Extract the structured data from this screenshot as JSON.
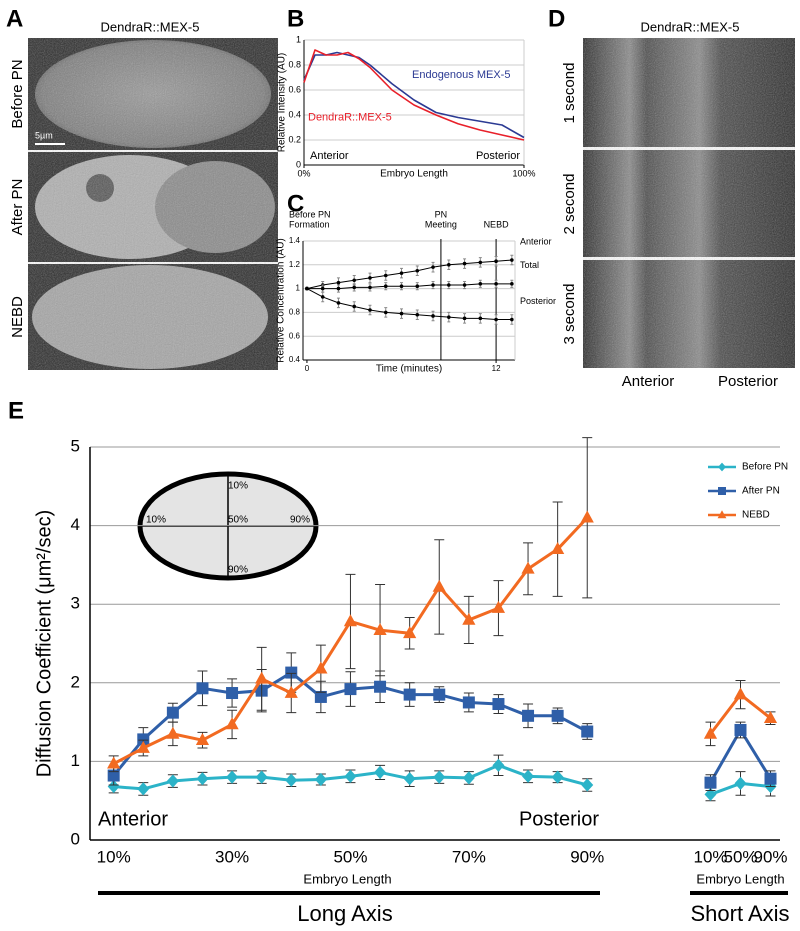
{
  "panel_labels": [
    "A",
    "B",
    "C",
    "D",
    "E"
  ],
  "panel_a": {
    "title": "DendraR::MEX-5",
    "rows": [
      "Before PN",
      "After PN",
      "NEBD"
    ],
    "scale_bar": "5µm"
  },
  "panel_d": {
    "title": "DendraR::MEX-5",
    "rows": [
      "1 second",
      "2 second",
      "3 second"
    ],
    "axis_labels": [
      "Anterior",
      "Posterior"
    ]
  },
  "panel_e": {
    "inset_labels": [
      "10%",
      "10%",
      "50%",
      "90%",
      "90%"
    ],
    "axis_groups": [
      "Long Axis",
      "Short Axis"
    ]
  },
  "chart_data": [
    {
      "type": "line",
      "ylabel": "Relative Intensity (AU)",
      "xlabel": "Embryo Length",
      "annotations": [
        "Anterior",
        "Posterior"
      ],
      "x": [
        0,
        5,
        10,
        15,
        20,
        25,
        30,
        40,
        50,
        60,
        70,
        80,
        90,
        100
      ],
      "series": [
        {
          "name": "Endogenous MEX-5",
          "color": "#2b3a93",
          "values": [
            0.68,
            0.88,
            0.88,
            0.9,
            0.88,
            0.86,
            0.8,
            0.65,
            0.52,
            0.42,
            0.38,
            0.35,
            0.32,
            0.22
          ]
        },
        {
          "name": "DendraR::MEX-5",
          "color": "#e8202a",
          "values": [
            0.66,
            0.92,
            0.88,
            0.88,
            0.9,
            0.85,
            0.78,
            0.6,
            0.48,
            0.4,
            0.33,
            0.28,
            0.24,
            0.2
          ]
        }
      ],
      "xlim": [
        0,
        100
      ],
      "xticks": [
        {
          "value": 0,
          "label": "0%"
        },
        {
          "value": 100,
          "label": "100%"
        }
      ],
      "ylim": [
        0,
        1
      ],
      "yticks": [
        0,
        0.2,
        0.4,
        0.6,
        0.8,
        1
      ],
      "grid": true
    },
    {
      "type": "line",
      "ylabel": "Relative Concentration (AU)",
      "xlabel": "Time (minutes)",
      "annotation": [
        "Before PN",
        "Formation"
      ],
      "vlines": [
        {
          "x": 8.5,
          "label": [
            "PN",
            "Meeting"
          ]
        },
        {
          "x": 12,
          "label": [
            "NEBD"
          ]
        }
      ],
      "x": [
        0,
        1,
        2,
        3,
        4,
        5,
        6,
        7,
        8,
        9,
        10,
        11,
        12,
        13
      ],
      "series": [
        {
          "name": "Anterior",
          "color": "#000000",
          "values": [
            1,
            1.03,
            1.05,
            1.07,
            1.09,
            1.11,
            1.13,
            1.15,
            1.18,
            1.2,
            1.21,
            1.22,
            1.23,
            1.24
          ],
          "errors": [
            0.01,
            0.03,
            0.04,
            0.04,
            0.04,
            0.04,
            0.04,
            0.04,
            0.04,
            0.04,
            0.04,
            0.04,
            0.04,
            0.04
          ]
        },
        {
          "name": "Total",
          "color": "#000000",
          "values": [
            1,
            1,
            1,
            1.01,
            1.01,
            1.02,
            1.02,
            1.02,
            1.03,
            1.03,
            1.03,
            1.04,
            1.04,
            1.04
          ],
          "errors": [
            0.01,
            0.03,
            0.03,
            0.03,
            0.03,
            0.03,
            0.03,
            0.03,
            0.03,
            0.03,
            0.03,
            0.03,
            0.03,
            0.03
          ]
        },
        {
          "name": "Posterior",
          "color": "#000000",
          "values": [
            1,
            0.93,
            0.88,
            0.85,
            0.82,
            0.8,
            0.79,
            0.78,
            0.77,
            0.76,
            0.75,
            0.75,
            0.74,
            0.74
          ],
          "errors": [
            0.01,
            0.04,
            0.04,
            0.04,
            0.04,
            0.04,
            0.04,
            0.04,
            0.04,
            0.04,
            0.04,
            0.04,
            0.04,
            0.04
          ]
        }
      ],
      "xlim": [
        -0.25,
        13.2
      ],
      "xticks": [
        0,
        12
      ],
      "ylim": [
        0.4,
        1.4
      ],
      "yticks": [
        0.4,
        0.6,
        0.8,
        1,
        1.2,
        1.4
      ],
      "grid": true
    },
    {
      "type": "line",
      "ylabel": "Diffusion Coefficient (μm²/sec)",
      "xlabel": "Embryo Length",
      "annotations": [
        "Anterior",
        "Posterior"
      ],
      "legend": "upper right",
      "x": [
        10,
        15,
        20,
        25,
        30,
        35,
        40,
        45,
        50,
        55,
        60,
        65,
        70,
        75,
        80,
        85,
        90
      ],
      "series": [
        {
          "name": "Before PN",
          "color": "#2bb3c8",
          "marker": "diamond",
          "values": [
            0.68,
            0.65,
            0.75,
            0.78,
            0.8,
            0.8,
            0.76,
            0.77,
            0.81,
            0.86,
            0.78,
            0.8,
            0.79,
            0.95,
            0.81,
            0.8,
            0.7
          ],
          "errors": [
            0.08,
            0.08,
            0.08,
            0.08,
            0.08,
            0.08,
            0.08,
            0.07,
            0.08,
            0.09,
            0.1,
            0.08,
            0.08,
            0.13,
            0.08,
            0.07,
            0.08
          ]
        },
        {
          "name": "After PN",
          "color": "#2f5fa8",
          "marker": "square",
          "values": [
            0.82,
            1.28,
            1.62,
            1.93,
            1.87,
            1.9,
            2.13,
            1.82,
            1.92,
            1.95,
            1.85,
            1.85,
            1.75,
            1.73,
            1.58,
            1.58,
            1.38
          ],
          "errors": [
            0.12,
            0.15,
            0.12,
            0.22,
            0.18,
            0.27,
            0.25,
            0.2,
            0.22,
            0.2,
            0.15,
            0.1,
            0.12,
            0.12,
            0.15,
            0.1,
            0.1
          ]
        },
        {
          "name": "NEBD",
          "color": "#f26a21",
          "marker": "triangle",
          "values": [
            0.97,
            1.17,
            1.35,
            1.27,
            1.47,
            2.05,
            1.87,
            2.18,
            2.78,
            2.67,
            2.63,
            3.22,
            2.8,
            2.95,
            3.45,
            3.7,
            4.1
          ],
          "errors": [
            0.1,
            0.1,
            0.15,
            0.1,
            0.18,
            0.4,
            0.25,
            0.3,
            0.6,
            0.58,
            0.2,
            0.6,
            0.3,
            0.35,
            0.33,
            0.6,
            1.02
          ]
        }
      ],
      "xlim": [
        6,
        93
      ],
      "xticks": [
        {
          "value": 10,
          "label": "10%"
        },
        {
          "value": 30,
          "label": "30%"
        },
        {
          "value": 50,
          "label": "50%"
        },
        {
          "value": 70,
          "label": "70%"
        },
        {
          "value": 90,
          "label": "90%"
        }
      ],
      "ylim": [
        0,
        5
      ],
      "yticks": [
        0,
        1,
        2,
        3,
        4,
        5
      ],
      "grid": true
    },
    {
      "type": "line",
      "xlabel": "Embryo Length",
      "x": [
        10,
        50,
        90
      ],
      "series": [
        {
          "color": "#2bb3c8",
          "marker": "diamond",
          "values": [
            0.58,
            0.72,
            0.68
          ],
          "errors": [
            0.08,
            0.15,
            0.12
          ]
        },
        {
          "color": "#2f5fa8",
          "marker": "square",
          "values": [
            0.73,
            1.4,
            0.78
          ],
          "errors": [
            0.1,
            0.1,
            0.1
          ]
        },
        {
          "color": "#f26a21",
          "marker": "triangle",
          "values": [
            1.35,
            1.85,
            1.55
          ],
          "errors": [
            0.15,
            0.18,
            0.08
          ]
        }
      ],
      "xlim": [
        -20,
        120
      ],
      "xticks": [
        {
          "value": 10,
          "label": "10%"
        },
        {
          "value": 50,
          "label": "50%"
        },
        {
          "value": 90,
          "label": "90%"
        }
      ],
      "ylim": [
        0,
        5
      ]
    }
  ]
}
